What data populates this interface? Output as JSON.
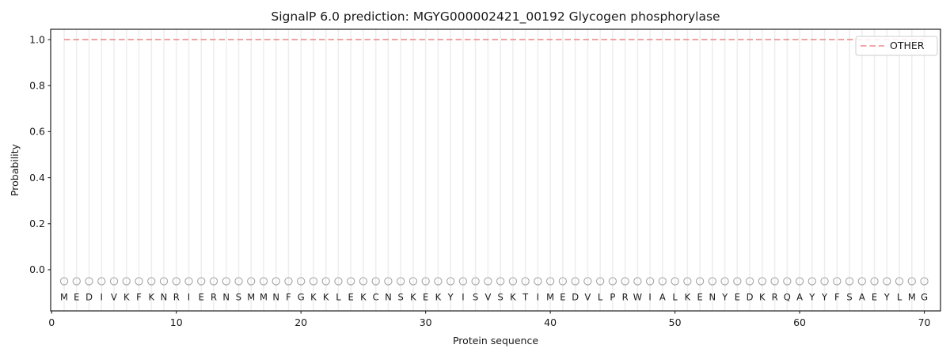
{
  "chart_data": {
    "type": "line",
    "title": "SignalP 6.0 prediction: MGYG000002421_00192 Glycogen phosphorylase",
    "xlabel": "Protein sequence",
    "ylabel": "Probability",
    "xlim": [
      -0.08,
      71.3
    ],
    "ylim": [
      -0.179,
      1.045
    ],
    "x_ticks": [
      0,
      10,
      20,
      30,
      40,
      50,
      60,
      70
    ],
    "y_ticks": [
      "0.0",
      "0.2",
      "0.4",
      "0.6",
      "0.8",
      "1.0"
    ],
    "grid": "vertical gridline at every residue position, no horizontal gridlines",
    "legend_position": "upper right",
    "series": [
      {
        "name": "OTHER",
        "type": "constant-line",
        "color": "#ec8c8c",
        "linestyle": "dashed",
        "x_start": 1,
        "x_end": 70,
        "y_value": 1.0
      }
    ],
    "sequence": "MEDIVKFKNRIERNSMMNFGKKLEKCNSKEKYISVSKTIMEDVLPRWIALKENYEDKRQAYYFSAEYLMG",
    "sequence_positions": [
      1,
      70
    ],
    "sequence_marker": {
      "symbol": "open-circle",
      "y_value": -0.05,
      "color": "#a3a3a3"
    }
  },
  "colors": {
    "background": "#ffffff",
    "other_line": "#ec8c8c",
    "grid": "#eeeeee",
    "spine": "#1f1f1f",
    "text": "#1a1a1a",
    "marker_stroke": "#a3a3a3",
    "legend_border": "#cccccc",
    "legend_bg": "#ffffff"
  }
}
